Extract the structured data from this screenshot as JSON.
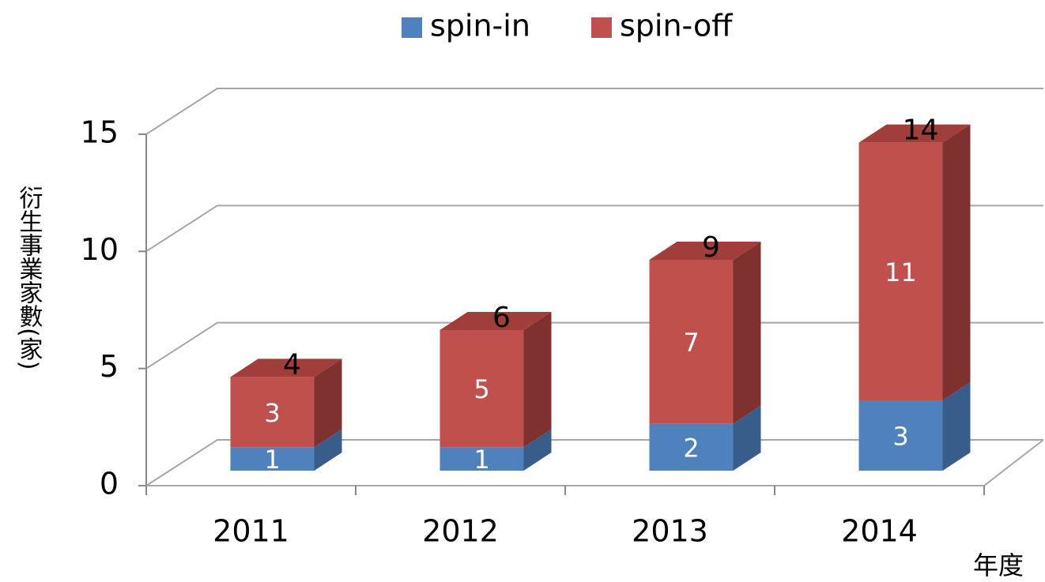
{
  "chart_data": {
    "type": "bar3d-stacked",
    "categories": [
      "2011",
      "2012",
      "2013",
      "2014"
    ],
    "series": [
      {
        "name": "spin-in",
        "color": "#4f81bd",
        "values": [
          1,
          1,
          2,
          3
        ]
      },
      {
        "name": "spin-off",
        "color": "#c0504d",
        "values": [
          3,
          5,
          7,
          11
        ]
      }
    ],
    "totals": [
      4,
      6,
      9,
      14
    ],
    "ylim": [
      0,
      15
    ],
    "yticks": [
      0,
      5,
      10,
      15
    ],
    "grid": true,
    "y_label": "衍生事業家數(家)",
    "x_label": "年度",
    "legend": "top"
  }
}
